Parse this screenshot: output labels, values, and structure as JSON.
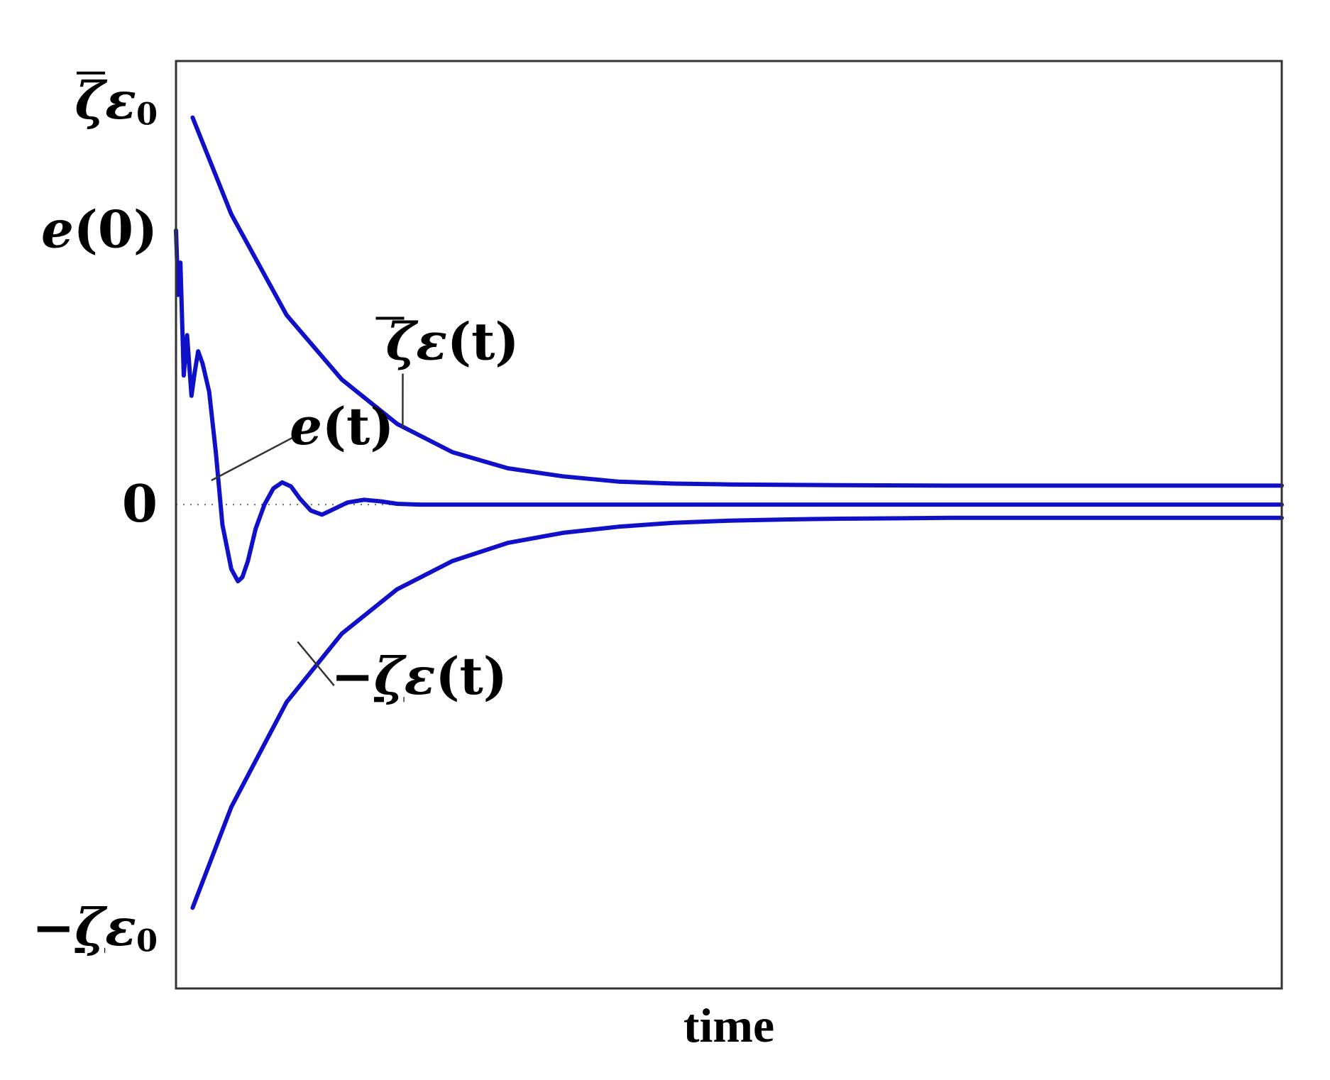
{
  "chart_data": {
    "type": "line",
    "xlabel": "time",
    "ylabel": "",
    "xlim": [
      0,
      10
    ],
    "ylim": [
      -1.2,
      1.1
    ],
    "y_ticks": [
      {
        "label": "ζ̄ε0",
        "sym": "ζ",
        "mod": "bar",
        "prefix": "",
        "sub": "0",
        "value": 1.0
      },
      {
        "label": "e(0)",
        "text": "e(0)",
        "value": 0.68
      },
      {
        "label": "0",
        "text": "0",
        "value": 0.0
      },
      {
        "label": "−ζ̲ε0",
        "sym": "ζ",
        "mod": "underline",
        "prefix": "−",
        "sub": "0",
        "value": -1.05
      }
    ],
    "zero_line": true,
    "grid": false,
    "series_style": {
      "color": "#1010c8"
    },
    "series": [
      {
        "label": "ζ̄ε(t)",
        "sym": "ζ",
        "mod": "bar",
        "prefix": "",
        "arg": "(t)",
        "label_at": [
          2.5,
          0.36
        ],
        "pointer_to": [
          2.05,
          0.19
        ],
        "x": [
          0.15,
          0.5,
          1.0,
          1.5,
          2.0,
          2.5,
          3.0,
          3.5,
          4.0,
          4.5,
          5.0,
          5.5,
          6.0,
          7.0,
          8.0,
          9.0,
          10.0
        ],
        "values": [
          0.96,
          0.72,
          0.47,
          0.31,
          0.2,
          0.13,
          0.09,
          0.07,
          0.057,
          0.052,
          0.05,
          0.049,
          0.048,
          0.047,
          0.047,
          0.047,
          0.047
        ]
      },
      {
        "label": "e(t)",
        "text": "e(t)",
        "label_at": [
          1.5,
          0.15
        ],
        "pointer_to": [
          0.32,
          0.06
        ],
        "x": [
          0.0,
          0.02,
          0.04,
          0.07,
          0.1,
          0.14,
          0.17,
          0.2,
          0.24,
          0.3,
          0.36,
          0.42,
          0.5,
          0.56,
          0.6,
          0.65,
          0.72,
          0.8,
          0.88,
          0.96,
          1.04,
          1.12,
          1.22,
          1.32,
          1.42,
          1.55,
          1.7,
          1.85,
          2.0,
          2.2,
          2.5,
          3.0,
          4.0,
          6.0,
          8.0,
          10.0
        ],
        "values": [
          0.68,
          0.52,
          0.6,
          0.32,
          0.42,
          0.27,
          0.33,
          0.38,
          0.35,
          0.28,
          0.13,
          -0.05,
          -0.16,
          -0.19,
          -0.18,
          -0.14,
          -0.06,
          0.0,
          0.04,
          0.055,
          0.045,
          0.015,
          -0.015,
          -0.025,
          -0.012,
          0.005,
          0.012,
          0.008,
          0.002,
          0.0,
          0.0,
          0.0,
          0.0,
          0.0,
          0.0,
          0.0
        ]
      },
      {
        "label": "−ζ̲ε(t)",
        "sym": "ζ",
        "mod": "underline",
        "prefix": "−",
        "arg": "(t)",
        "label_at": [
          2.2,
          -0.47
        ],
        "pointer_to": [
          1.1,
          -0.34
        ],
        "x": [
          0.15,
          0.5,
          1.0,
          1.5,
          2.0,
          2.5,
          3.0,
          3.5,
          4.0,
          4.5,
          5.0,
          5.5,
          6.0,
          7.0,
          8.0,
          9.0,
          10.0
        ],
        "values": [
          -1.0,
          -0.75,
          -0.49,
          -0.32,
          -0.21,
          -0.14,
          -0.095,
          -0.07,
          -0.055,
          -0.045,
          -0.04,
          -0.037,
          -0.035,
          -0.033,
          -0.033,
          -0.033,
          -0.033
        ]
      }
    ]
  }
}
